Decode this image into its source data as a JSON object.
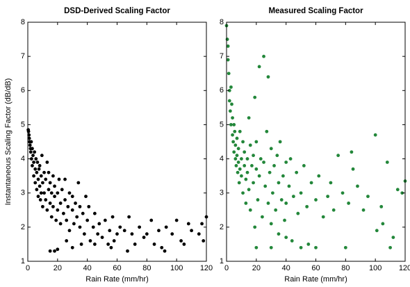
{
  "chart_data": [
    {
      "type": "scatter",
      "title": "DSD-Derived Scaling Factor",
      "x_label": "Rain Rate (mm/hr)",
      "y_label": "Instantaneous Scaling Factor (dB/dB)",
      "color": "#000000",
      "xlim": [
        0,
        120
      ],
      "ylim": [
        1,
        8
      ],
      "xticks": [
        0,
        20,
        40,
        60,
        80,
        100,
        120
      ],
      "yticks": [
        1,
        2,
        3,
        4,
        5,
        6,
        7,
        8
      ],
      "x": [
        0.3,
        0.5,
        0.8,
        1,
        1.2,
        1.5,
        1.8,
        2,
        2.3,
        2.5,
        3,
        3,
        3.5,
        4,
        4,
        4.5,
        5,
        5,
        5.5,
        6,
        6,
        6.5,
        7,
        7,
        7.5,
        8,
        8,
        8.5,
        9,
        9,
        9.5,
        10,
        10,
        11,
        11,
        12,
        12,
        13,
        13,
        14,
        14,
        15,
        15,
        16,
        16,
        17,
        17,
        18,
        18,
        19,
        20,
        20,
        21,
        22,
        22,
        23,
        24,
        25,
        25,
        26,
        27,
        28,
        28,
        30,
        30,
        31,
        32,
        33,
        34,
        35,
        35,
        37,
        38,
        39,
        40,
        41,
        42,
        44,
        45,
        47,
        48,
        50,
        52,
        54,
        55,
        57,
        58,
        60,
        62,
        65,
        67,
        68,
        70,
        72,
        75,
        78,
        80,
        83,
        85,
        88,
        90,
        92,
        93,
        97,
        100,
        103,
        105,
        108,
        110,
        115,
        117,
        118,
        120,
        18,
        20,
        15,
        30,
        45,
        56,
        26,
        36
      ],
      "values": [
        4.85,
        4.8,
        4.7,
        4.6,
        4.5,
        4.4,
        4.3,
        4.2,
        4.5,
        4.0,
        4.3,
        3.8,
        4.1,
        3.9,
        3.5,
        4.2,
        3.7,
        3.3,
        4.0,
        3.6,
        3.1,
        3.9,
        3.4,
        2.9,
        3.7,
        3.2,
        3.8,
        2.8,
        3.5,
        3.0,
        4.1,
        3.3,
        2.6,
        3.6,
        3.0,
        2.8,
        3.4,
        3.9,
        2.5,
        3.1,
        3.6,
        2.7,
        3.3,
        2.3,
        3.0,
        3.5,
        2.6,
        2.9,
        3.2,
        2.2,
        3.0,
        2.5,
        3.4,
        2.7,
        2.1,
        3.1,
        2.4,
        2.8,
        3.4,
        2.2,
        2.6,
        3.0,
        1.9,
        2.5,
        2.9,
        2.1,
        2.7,
        2.3,
        3.3,
        2.0,
        2.6,
        2.4,
        1.8,
        2.9,
        2.2,
        2.6,
        1.6,
        2.0,
        2.4,
        1.8,
        2.1,
        1.7,
        2.2,
        1.5,
        1.9,
        2.3,
        1.6,
        1.8,
        2.0,
        1.9,
        1.3,
        2.3,
        1.8,
        1.5,
        2.0,
        1.7,
        1.8,
        2.2,
        1.5,
        1.9,
        1.4,
        1.3,
        2.0,
        1.8,
        2.2,
        1.6,
        1.5,
        2.1,
        1.9,
        1.8,
        2.1,
        1.6,
        2.3,
        1.3,
        1.35,
        1.3,
        1.4,
        1.5,
        1.4,
        1.6,
        1.5
      ]
    },
    {
      "type": "scatter",
      "title": "Measured Scaling Factor",
      "x_label": "Rain Rate (mm/hr)",
      "color": "#23873a",
      "xlim": [
        0,
        120
      ],
      "ylim": [
        1,
        8
      ],
      "xticks": [
        0,
        20,
        40,
        60,
        80,
        100,
        120
      ],
      "yticks": [
        1,
        2,
        3,
        4,
        5,
        6,
        7,
        8
      ],
      "x": [
        0,
        0.5,
        1,
        1,
        1.5,
        2,
        2,
        2.5,
        3,
        3,
        3.5,
        4,
        4,
        4.5,
        5,
        5,
        5.5,
        6,
        6,
        6.5,
        7,
        7,
        7.5,
        8,
        8,
        8.5,
        9,
        9,
        10,
        10,
        11,
        11,
        12,
        12,
        13,
        13,
        14,
        14,
        15,
        15,
        16,
        16,
        17,
        18,
        18,
        19,
        19,
        20,
        20,
        21,
        22,
        22,
        23,
        24,
        25,
        25,
        26,
        27,
        28,
        28,
        29,
        30,
        30,
        31,
        32,
        33,
        34,
        35,
        35,
        36,
        37,
        38,
        39,
        40,
        40,
        42,
        43,
        44,
        45,
        47,
        48,
        50,
        50,
        52,
        54,
        55,
        57,
        60,
        60,
        62,
        65,
        68,
        70,
        72,
        75,
        78,
        80,
        82,
        84,
        85,
        88,
        92,
        95,
        100,
        101,
        104,
        108,
        110,
        112,
        115,
        118,
        120,
        105,
        30,
        20,
        40
      ],
      "values": [
        7.9,
        7.5,
        7.3,
        6.9,
        6.5,
        6.0,
        5.7,
        5.4,
        6.1,
        5.0,
        5.6,
        4.7,
        5.2,
        4.5,
        5.0,
        4.2,
        4.8,
        4.0,
        4.4,
        3.8,
        4.6,
        4.1,
        3.6,
        4.3,
        3.9,
        3.3,
        4.8,
        3.7,
        4.0,
        3.5,
        4.5,
        3.0,
        3.8,
        4.2,
        3.4,
        2.7,
        4.0,
        3.6,
        5.2,
        3.1,
        4.4,
        2.5,
        3.8,
        4.1,
        3.3,
        2.0,
        5.8,
        3.7,
        4.5,
        2.8,
        6.7,
        3.5,
        4.0,
        2.3,
        7.0,
        3.9,
        3.2,
        4.8,
        6.4,
        2.7,
        3.6,
        4.3,
        2.1,
        3.0,
        3.8,
        2.5,
        4.1,
        3.3,
        1.8,
        4.5,
        2.8,
        3.5,
        2.2,
        3.9,
        2.7,
        3.2,
        4.0,
        1.6,
        2.9,
        3.6,
        2.4,
        3.0,
        1.4,
        3.8,
        2.6,
        1.5,
        3.3,
        2.8,
        1.4,
        3.5,
        2.3,
        2.9,
        3.3,
        2.5,
        4.1,
        3.0,
        1.4,
        2.7,
        4.2,
        3.7,
        3.2,
        2.5,
        2.9,
        4.7,
        1.9,
        2.6,
        3.9,
        1.4,
        1.7,
        3.1,
        3.0,
        3.35,
        2.1,
        1.4,
        1.4,
        1.7
      ]
    }
  ]
}
